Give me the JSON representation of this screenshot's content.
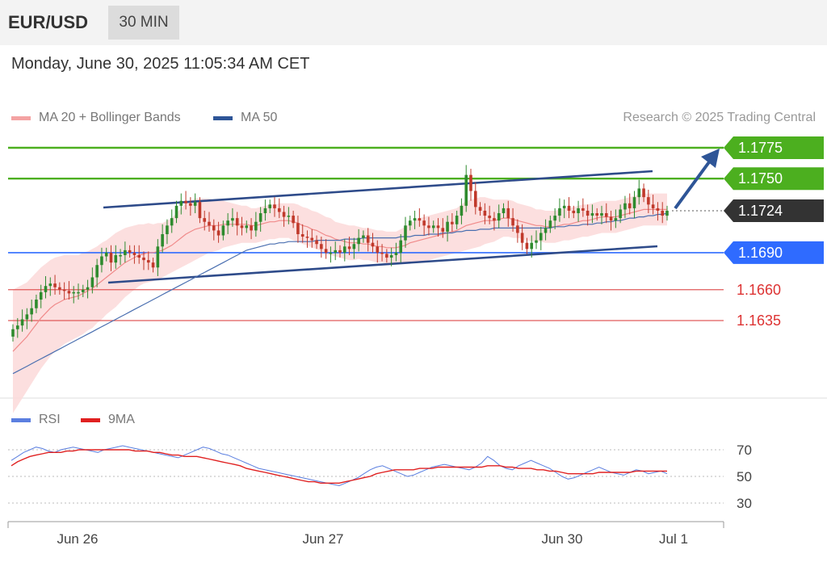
{
  "header": {
    "symbol": "EUR/USD",
    "timeframe": "30 MIN"
  },
  "datetime": "Monday, June 30, 2025 11:05:34 AM CET",
  "legend": {
    "ma20": {
      "label": "MA 20 + Bollinger Bands",
      "color": "#f08a8a"
    },
    "ma50": {
      "label": "MA 50",
      "color": "#2e5597"
    }
  },
  "credit": "Research © 2025 Trading Central",
  "colors": {
    "up": "#2e8b2e",
    "down": "#c0392b",
    "resistance": "#4caf1f",
    "pivot": "#2f6bff",
    "support": "#e05a5a",
    "current": "#333333",
    "channel": "#2e4b8a"
  },
  "rsi_legend": {
    "rsi": {
      "label": "RSI",
      "color": "#5b7fe0"
    },
    "ma9": {
      "label": "9MA",
      "color": "#e02020"
    }
  },
  "chart_data": [
    {
      "type": "candlestick",
      "title": "EUR/USD 30 MIN",
      "x_labels": [
        "Jun 26",
        "Jun 27",
        "Jun 30",
        "Jul 1"
      ],
      "levels": [
        {
          "value": 1.1775,
          "label": "1.1775",
          "kind": "resistance"
        },
        {
          "value": 1.175,
          "label": "1.1750",
          "kind": "resistance"
        },
        {
          "value": 1.1724,
          "label": "1.1724",
          "kind": "current"
        },
        {
          "value": 1.169,
          "label": "1.1690",
          "kind": "pivot"
        },
        {
          "value": 1.166,
          "label": "1.1660",
          "kind": "support"
        },
        {
          "value": 1.1635,
          "label": "1.1635",
          "kind": "support"
        }
      ],
      "close": [
        1.1628,
        1.1631,
        1.1636,
        1.164,
        1.1645,
        1.1652,
        1.1658,
        1.1663,
        1.1665,
        1.1662,
        1.166,
        1.1659,
        1.1657,
        1.1658,
        1.1658,
        1.166,
        1.1662,
        1.167,
        1.168,
        1.1687,
        1.169,
        1.1682,
        1.1688,
        1.1688,
        1.1692,
        1.169,
        1.1688,
        1.1686,
        1.1684,
        1.1682,
        1.1678,
        1.1695,
        1.1705,
        1.1712,
        1.1718,
        1.1728,
        1.1732,
        1.173,
        1.1728,
        1.1731,
        1.1718,
        1.1715,
        1.1712,
        1.1708,
        1.1704,
        1.1712,
        1.1716,
        1.1718,
        1.1712,
        1.171,
        1.1712,
        1.1708,
        1.1715,
        1.1722,
        1.1726,
        1.1729,
        1.1726,
        1.1723,
        1.1719,
        1.172,
        1.1714,
        1.1705,
        1.1703,
        1.1702,
        1.17,
        1.1697,
        1.1693,
        1.169,
        1.169,
        1.1692,
        1.169,
        1.1695,
        1.1693,
        1.1697,
        1.1702,
        1.1704,
        1.1698,
        1.1695,
        1.169,
        1.1689,
        1.1686,
        1.1688,
        1.169,
        1.17,
        1.1712,
        1.1716,
        1.1718,
        1.1716,
        1.1712,
        1.171,
        1.1712,
        1.171,
        1.1707,
        1.1715,
        1.1713,
        1.172,
        1.1728,
        1.1753,
        1.174,
        1.1727,
        1.1724,
        1.172,
        1.1718,
        1.1716,
        1.1722,
        1.1726,
        1.1718,
        1.1712,
        1.1706,
        1.1698,
        1.1693,
        1.1698,
        1.17,
        1.1706,
        1.171,
        1.1716,
        1.172,
        1.1726,
        1.1728,
        1.1724,
        1.1722,
        1.1726,
        1.1724,
        1.172,
        1.1722,
        1.172,
        1.1722,
        1.1719,
        1.1716,
        1.1718,
        1.1725,
        1.173,
        1.1726,
        1.1735,
        1.1742,
        1.1735,
        1.1729,
        1.1726,
        1.1724,
        1.172,
        1.1724
      ],
      "ma20": [
        1.161,
        1.1614,
        1.1618,
        1.1622,
        1.1627,
        1.1632,
        1.1637,
        1.1641,
        1.1645,
        1.1648,
        1.165,
        1.1652,
        1.1653,
        1.1654,
        1.1655,
        1.1657,
        1.1659,
        1.1661,
        1.1664,
        1.1667,
        1.167,
        1.1673,
        1.1676,
        1.1679,
        1.1682,
        1.1684,
        1.1686,
        1.1688,
        1.1689,
        1.169,
        1.169,
        1.1691,
        1.1692,
        1.1694,
        1.1696,
        1.1699,
        1.1702,
        1.1705,
        1.1707,
        1.1709,
        1.171,
        1.1711,
        1.1712,
        1.1712,
        1.1712,
        1.1713,
        1.1713,
        1.1713,
        1.1713,
        1.1713,
        1.1713,
        1.1712,
        1.1712,
        1.1713,
        1.1714,
        1.1715,
        1.1715,
        1.1716,
        1.1716,
        1.1716,
        1.1715,
        1.1714,
        1.1712,
        1.1711,
        1.1709,
        1.1708,
        1.1706,
        1.1704,
        1.1703,
        1.1701,
        1.17,
        1.1699,
        1.1698,
        1.1698,
        1.1698,
        1.1697,
        1.1697,
        1.1696,
        1.1695,
        1.1695,
        1.1694,
        1.1694,
        1.1694,
        1.1695,
        1.1696,
        1.1698,
        1.1699,
        1.17,
        1.1701,
        1.1702,
        1.1703,
        1.1704,
        1.1705,
        1.1706,
        1.1707,
        1.1708,
        1.171,
        1.1712,
        1.1713,
        1.1714,
        1.1715,
        1.1716,
        1.1716,
        1.1716,
        1.1717,
        1.1718,
        1.1718,
        1.1717,
        1.1716,
        1.1715,
        1.1714,
        1.1713,
        1.1712,
        1.1712,
        1.1711,
        1.1711,
        1.1711,
        1.1712,
        1.1713,
        1.1713,
        1.1714,
        1.1715,
        1.1716,
        1.1716,
        1.1717,
        1.1718,
        1.1719,
        1.1719,
        1.1719,
        1.1719,
        1.172,
        1.1721,
        1.1722,
        1.1723,
        1.1724,
        1.1725,
        1.1725,
        1.1725,
        1.1725,
        1.1725,
        1.1725
      ],
      "ma50": [
        1.1592,
        1.1594,
        1.1596,
        1.1598,
        1.16,
        1.1602,
        1.1604,
        1.1606,
        1.1608,
        1.161,
        1.1612,
        1.1614,
        1.1616,
        1.1618,
        1.162,
        1.1622,
        1.1624,
        1.1626,
        1.1628,
        1.163,
        1.1632,
        1.1634,
        1.1636,
        1.1638,
        1.164,
        1.1642,
        1.1644,
        1.1646,
        1.1648,
        1.165,
        1.1652,
        1.1654,
        1.1656,
        1.1658,
        1.166,
        1.1662,
        1.1664,
        1.1666,
        1.1668,
        1.167,
        1.1672,
        1.1674,
        1.1676,
        1.1678,
        1.168,
        1.1682,
        1.1684,
        1.1686,
        1.1688,
        1.169,
        1.1692,
        1.1693,
        1.1694,
        1.1695,
        1.1696,
        1.1697,
        1.1697,
        1.1698,
        1.1698,
        1.1699,
        1.1699,
        1.1699,
        1.1699,
        1.1699,
        1.1699,
        1.17,
        1.17,
        1.17,
        1.17,
        1.17,
        1.17,
        1.1701,
        1.1701,
        1.1701,
        1.1701,
        1.1702,
        1.1702,
        1.1702,
        1.1702,
        1.1702,
        1.1702,
        1.1702,
        1.1702,
        1.1703,
        1.1703,
        1.1703,
        1.1704,
        1.1704,
        1.1704,
        1.1705,
        1.1705,
        1.1705,
        1.1706,
        1.1706,
        1.1706,
        1.1707,
        1.1707,
        1.1708,
        1.1708,
        1.1708,
        1.1709,
        1.1709,
        1.1709,
        1.171,
        1.171,
        1.171,
        1.171,
        1.171,
        1.171,
        1.171,
        1.171,
        1.171,
        1.171,
        1.171,
        1.171,
        1.171,
        1.1711,
        1.1711,
        1.1711,
        1.1712,
        1.1712,
        1.1712,
        1.1713,
        1.1713,
        1.1713,
        1.1714,
        1.1714,
        1.1715,
        1.1715,
        1.1716,
        1.1716,
        1.1717,
        1.1718,
        1.1718,
        1.1719,
        1.1719,
        1.172,
        1.172,
        1.1721,
        1.1721,
        1.1722
      ],
      "bb_width": [
        0.005,
        0.0048,
        0.0046,
        0.0044,
        0.0043,
        0.0042,
        0.0041,
        0.004,
        0.0039,
        0.0038,
        0.0037,
        0.0036,
        0.0035,
        0.0034,
        0.0033,
        0.0033,
        0.0032,
        0.0032,
        0.0031,
        0.0031,
        0.003,
        0.003,
        0.003,
        0.0029,
        0.0028,
        0.0027,
        0.0026,
        0.0025,
        0.0024,
        0.0024,
        0.0023,
        0.0023,
        0.0022,
        0.0022,
        0.0022,
        0.0023,
        0.0024,
        0.0025,
        0.0025,
        0.0025,
        0.0024,
        0.0023,
        0.0022,
        0.0021,
        0.002,
        0.0019,
        0.0018,
        0.0017,
        0.0016,
        0.0015,
        0.0015,
        0.0014,
        0.0014,
        0.0014,
        0.0014,
        0.0014,
        0.0014,
        0.0014,
        0.0014,
        0.0014,
        0.0015,
        0.0015,
        0.0015,
        0.0015,
        0.0015,
        0.0015,
        0.0015,
        0.0015,
        0.0015,
        0.0014,
        0.0014,
        0.0014,
        0.0014,
        0.0014,
        0.0013,
        0.0013,
        0.0013,
        0.0013,
        0.0013,
        0.0013,
        0.0013,
        0.0013,
        0.0013,
        0.0014,
        0.0015,
        0.0016,
        0.0017,
        0.0018,
        0.0018,
        0.0018,
        0.0018,
        0.0018,
        0.0018,
        0.0018,
        0.0018,
        0.0018,
        0.0019,
        0.002,
        0.002,
        0.002,
        0.002,
        0.0019,
        0.0018,
        0.0017,
        0.0016,
        0.0015,
        0.0015,
        0.0015,
        0.0014,
        0.0014,
        0.0014,
        0.0014,
        0.0013,
        0.0013,
        0.0013,
        0.0013,
        0.0013,
        0.0013,
        0.0013,
        0.0013,
        0.0013,
        0.0013,
        0.0013,
        0.0013,
        0.0013,
        0.0013,
        0.0013,
        0.0013,
        0.0013,
        0.0013,
        0.0013,
        0.0013,
        0.0013,
        0.0013,
        0.0013,
        0.0013,
        0.0013,
        0.0013,
        0.0013,
        0.0013,
        0.0013,
        0.0013
      ]
    },
    {
      "type": "line",
      "title": "RSI",
      "y_ticks": [
        "70",
        "50",
        "30"
      ],
      "x_labels": [
        "Jun 26",
        "Jun 27",
        "Jun 30",
        "Jul 1"
      ],
      "series": [
        {
          "name": "RSI",
          "color": "#5b7fe0",
          "values": [
            62,
            65,
            68,
            70,
            72,
            71,
            69,
            68,
            70,
            71,
            72,
            71,
            70,
            69,
            68,
            70,
            71,
            72,
            73,
            72,
            71,
            70,
            69,
            68,
            67,
            66,
            65,
            64,
            66,
            68,
            70,
            72,
            71,
            69,
            67,
            66,
            64,
            62,
            60,
            58,
            56,
            55,
            54,
            53,
            52,
            51,
            50,
            49,
            48,
            47,
            46,
            45,
            44,
            43,
            45,
            47,
            49,
            52,
            55,
            57,
            58,
            56,
            54,
            52,
            50,
            51,
            53,
            55,
            57,
            58,
            59,
            58,
            57,
            56,
            55,
            57,
            60,
            65,
            62,
            58,
            56,
            55,
            58,
            60,
            62,
            60,
            58,
            56,
            53,
            50,
            48,
            49,
            51,
            53,
            55,
            57,
            55,
            53,
            52,
            51,
            53,
            55,
            54,
            52,
            53,
            54,
            52
          ]
        },
        {
          "name": "9MA",
          "color": "#e02020",
          "values": [
            58,
            61,
            63,
            65,
            66,
            67,
            68,
            68,
            68,
            69,
            69,
            70,
            70,
            70,
            70,
            70,
            70,
            70,
            70,
            70,
            69,
            69,
            69,
            68,
            68,
            67,
            66,
            66,
            65,
            65,
            65,
            64,
            63,
            62,
            61,
            60,
            59,
            58,
            56,
            55,
            54,
            53,
            52,
            51,
            50,
            49,
            48,
            47,
            46,
            46,
            45,
            45,
            45,
            45,
            46,
            47,
            48,
            49,
            50,
            52,
            53,
            54,
            55,
            55,
            55,
            55,
            56,
            56,
            56,
            57,
            57,
            57,
            57,
            57,
            57,
            57,
            57,
            58,
            58,
            58,
            57,
            57,
            56,
            56,
            56,
            55,
            55,
            54,
            54,
            53,
            52,
            52,
            52,
            52,
            52,
            53,
            53,
            53,
            53,
            53,
            53,
            54,
            54,
            54,
            54,
            54,
            54
          ]
        }
      ]
    }
  ]
}
